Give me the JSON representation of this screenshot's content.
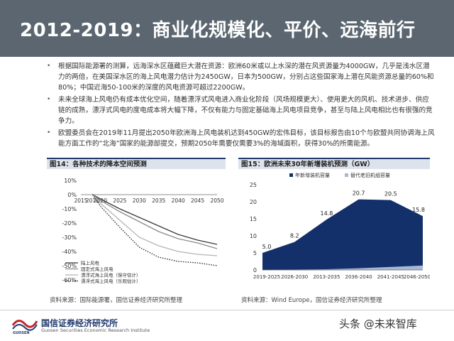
{
  "title": "2012-2019：商业化规模化、平价、远海前行",
  "bullets": [
    "根据国际能源署的测算，远海深水区蕴藏巨大潜在资源：欧洲60米或以上水深的潜在风资源量为4000GW，几乎是浅水区潜力的两倍，在美国深水区的海上风电潜力估计为2450GW，日本为500GW，分别占这些国家海上潜在风能资源总量的60%和80%；中国近海50-100米的深度的风电资源可超过2200GW。",
    "未来全球海上风电仍有成本优化空间，随着漂浮式风电进入商业化阶段（风场规模更大）、使用更大的风机、技术进步、供应链的成熟，漂浮式风电的度电成本将大幅下降，不仅有能力与固定基础海上风电项目竞争，甚至与陆上风电相比也有很强的竞争力。",
    "欧盟委员会在2019年11月提出2050年欧洲海上风电装机达到450GW的宏伟目标，该目标报告由10个与欧盟共同协调海上风能方面工作的“北海”国家的能源部提交，预期2050年需要仅需要3%的海域面积，获得30%的所需能源。"
  ],
  "figure14": {
    "heading": "图14：各种技术的降本空间预测",
    "source": "资料来源：国际能源署，国信证券经济研究所整理",
    "legend": [
      "陆上风电",
      "固定式海上风电",
      "漂浮式海上风电（保守估计）",
      "漂浮式海上风电（乐观估计）"
    ]
  },
  "figure15": {
    "heading": "图15：欧洲未来30年新增装机预测（GW）",
    "source": "资料来源：Wind Europe，国信证券经济研究所整理",
    "legend": [
      "年新增装机容量",
      "替代老旧机组容量"
    ]
  },
  "chart_data": [
    {
      "type": "line",
      "title": "",
      "x": [
        2015,
        2018,
        2020,
        2025,
        2030,
        2035,
        2040,
        2045,
        2050
      ],
      "xlabel": "",
      "ylabel": "",
      "ylim": [
        -60,
        10
      ],
      "yticks": [
        "10%",
        "0%",
        "-10%",
        "-20%",
        "-30%",
        "-40%",
        "-50%",
        "-60%"
      ],
      "legend_position": "bottom-left",
      "series": [
        {
          "name": "陆上风电",
          "color": "#3a3a3a",
          "dash": "solid",
          "values": [
            null,
            0,
            -3,
            -10,
            -16,
            -22,
            -28,
            -32,
            -35
          ]
        },
        {
          "name": "固定式海上风电",
          "color": "#8a8a8a",
          "dash": "solid",
          "values": [
            null,
            0,
            -4,
            -12,
            -19,
            -26,
            -31,
            -34,
            -38
          ]
        },
        {
          "name": "漂浮式海上风电（保守估计）",
          "color": "#b5b5b5",
          "dash": "solid",
          "values": [
            null,
            0,
            -6,
            -18,
            -30,
            -36,
            -40,
            -42,
            -43
          ]
        },
        {
          "name": "漂浮式海上风电（乐观估计）",
          "color": "#222222",
          "dash": "dotted",
          "values": [
            null,
            0,
            -8,
            -23,
            -37,
            -44,
            -47,
            -48,
            -50
          ]
        }
      ]
    },
    {
      "type": "area",
      "title": "",
      "categories": [
        "2019-2025",
        "2026-2030",
        "2013-2035",
        "2036-2040",
        "2041-2045",
        "2046-2050"
      ],
      "ylim": [
        0,
        25
      ],
      "yticks": [
        0,
        5,
        10,
        15,
        20,
        25
      ],
      "legend_position": "top-center",
      "series": [
        {
          "name": "年新增装机容量",
          "color": "#13306b",
          "values": [
            5.0,
            8.2,
            14.8,
            20.7,
            20.5,
            15.8
          ]
        },
        {
          "name": "替代老旧机组容量",
          "color": "#a9b7d4",
          "values": [
            0.0,
            0.1,
            0.2,
            0.5,
            0.9,
            1.3
          ]
        }
      ],
      "data_labels": [
        "5.0",
        "8.2",
        "14.8",
        "20.7",
        "20.5",
        "15.8"
      ]
    }
  ],
  "footer": {
    "logo_name": "国信证券经济研究所",
    "logo_en": "Guosen Securities Economic Research Institute",
    "logo_mark": "GUOSEN",
    "watermark": "头条 @未来智库"
  }
}
